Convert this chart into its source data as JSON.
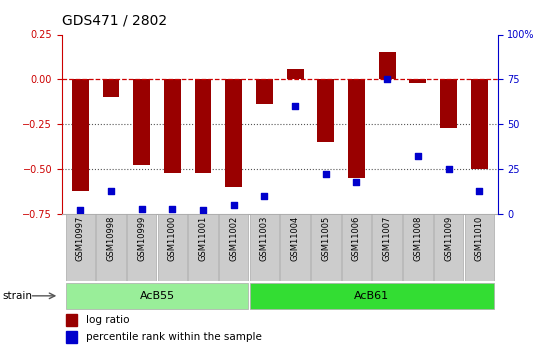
{
  "title": "GDS471 / 2802",
  "samples": [
    "GSM10997",
    "GSM10998",
    "GSM10999",
    "GSM11000",
    "GSM11001",
    "GSM11002",
    "GSM11003",
    "GSM11004",
    "GSM11005",
    "GSM11006",
    "GSM11007",
    "GSM11008",
    "GSM11009",
    "GSM11010"
  ],
  "log_ratio": [
    -0.62,
    -0.1,
    -0.48,
    -0.52,
    -0.52,
    -0.6,
    -0.14,
    0.06,
    -0.35,
    -0.55,
    0.15,
    -0.02,
    -0.27,
    -0.5
  ],
  "percentile": [
    2,
    13,
    3,
    3,
    2,
    5,
    10,
    60,
    22,
    18,
    75,
    32,
    25,
    13
  ],
  "groups": [
    {
      "label": "AcB55",
      "start": 0,
      "end": 6,
      "color": "#99ee99"
    },
    {
      "label": "AcB61",
      "start": 6,
      "end": 14,
      "color": "#33dd33"
    }
  ],
  "bar_color": "#990000",
  "dot_color": "#0000cc",
  "left_ylim": [
    -0.75,
    0.25
  ],
  "left_yticks": [
    -0.75,
    -0.5,
    -0.25,
    0,
    0.25
  ],
  "right_ylim": [
    0,
    100
  ],
  "right_yticks": [
    0,
    25,
    50,
    75,
    100
  ],
  "right_yticklabels": [
    "0",
    "25",
    "50",
    "75",
    "100%"
  ],
  "hline_color": "#cc0000",
  "dotted_line_color": "#555555",
  "dotted_lines": [
    -0.25,
    -0.5
  ],
  "bar_width": 0.55,
  "strain_label": "strain",
  "legend_labels": [
    "log ratio",
    "percentile rank within the sample"
  ],
  "sample_box_color": "#cccccc",
  "title_fontsize": 10,
  "tick_fontsize": 7,
  "axis_label_color_left": "#cc0000",
  "axis_label_color_right": "#0000cc",
  "bg_color": "#ffffff"
}
